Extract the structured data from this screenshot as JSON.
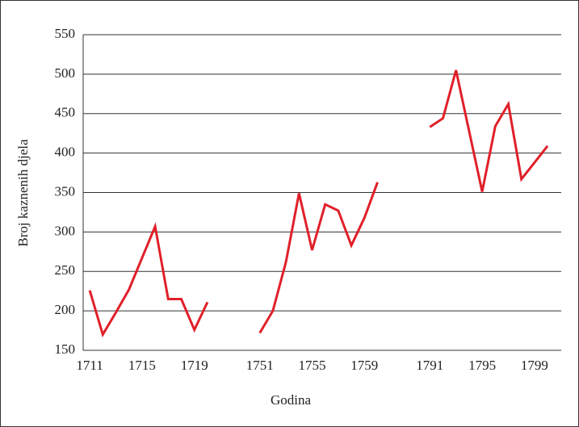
{
  "chart_data": {
    "type": "line",
    "x_label": "Godina",
    "y_label": "Broj kaznenih djela",
    "categories": [
      "1711",
      null,
      null,
      null,
      "1715",
      null,
      null,
      null,
      "1719",
      null,
      null,
      null,
      null,
      "1751",
      null,
      null,
      null,
      "1755",
      null,
      null,
      null,
      "1759",
      null,
      null,
      null,
      null,
      "1791",
      null,
      null,
      null,
      "1795",
      null,
      null,
      null,
      "1799",
      null
    ],
    "series": [
      {
        "name": null,
        "color": "#e0202a",
        "values": [
          226,
          170,
          198,
          227,
          267,
          307,
          215,
          215,
          176,
          211,
          null,
          null,
          null,
          172,
          200,
          262,
          349,
          277,
          335,
          327,
          283,
          318,
          363,
          null,
          null,
          null,
          433,
          444,
          505,
          428,
          351,
          434,
          462,
          367,
          388,
          409
        ]
      }
    ],
    "ylim": [
      150,
      550
    ],
    "yticks": [
      150,
      200,
      250,
      300,
      350,
      400,
      450,
      500,
      550
    ],
    "grid": true
  }
}
